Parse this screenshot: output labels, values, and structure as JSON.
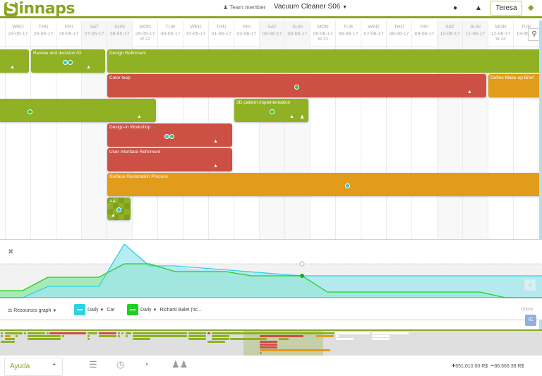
{
  "header": {
    "logo": "innaps",
    "logo_s": "S",
    "team_member": "Team member",
    "project": "Vacuum Cleaner S06",
    "user": "Teresa",
    "icons": [
      "chat-icon",
      "bell-icon",
      "graduation-cap-icon"
    ]
  },
  "calendar": {
    "columns": [
      {
        "day": "WED",
        "date": "24-05-17",
        "week": "",
        "weekend": false
      },
      {
        "day": "THU",
        "date": "25-05-17",
        "week": "",
        "weekend": false
      },
      {
        "day": "FRI",
        "date": "26-05-17",
        "week": "",
        "weekend": false
      },
      {
        "day": "SAT",
        "date": "27-05-17",
        "week": "",
        "weekend": true
      },
      {
        "day": "SUN",
        "date": "28-05-17",
        "week": "",
        "weekend": true
      },
      {
        "day": "MON",
        "date": "29-05-17",
        "week": "W 22",
        "weekend": false
      },
      {
        "day": "TUE",
        "date": "30-05-17",
        "week": "",
        "weekend": false
      },
      {
        "day": "WED",
        "date": "31-05-17",
        "week": "",
        "weekend": false
      },
      {
        "day": "THU",
        "date": "01-06-17",
        "week": "",
        "weekend": false
      },
      {
        "day": "FRI",
        "date": "02-06-17",
        "week": "",
        "weekend": false
      },
      {
        "day": "SAT",
        "date": "03-06-17",
        "week": "",
        "weekend": true
      },
      {
        "day": "SUN",
        "date": "04-06-17",
        "week": "",
        "weekend": true
      },
      {
        "day": "MON",
        "date": "05-06-17",
        "week": "W 23",
        "weekend": false
      },
      {
        "day": "TUE",
        "date": "06-06-17",
        "week": "",
        "weekend": false
      },
      {
        "day": "WED",
        "date": "07-06-17",
        "week": "",
        "weekend": false
      },
      {
        "day": "THU",
        "date": "08-06-17",
        "week": "",
        "weekend": false
      },
      {
        "day": "FRI",
        "date": "09-06-17",
        "week": "",
        "weekend": false
      },
      {
        "day": "SAT",
        "date": "10-06-17",
        "week": "",
        "weekend": true
      },
      {
        "day": "SUN",
        "date": "11-06-17",
        "week": "",
        "weekend": true
      },
      {
        "day": "MON",
        "date": "12-06-17",
        "week": "W 24",
        "weekend": false
      },
      {
        "day": "TUE",
        "date": "13-06-17",
        "week": "",
        "weekend": false
      }
    ]
  },
  "tasks": [
    {
      "label": "",
      "color": "green"
    },
    {
      "label": "Review and decision 02",
      "color": "green"
    },
    {
      "label": "Design Refinment",
      "color": "green"
    },
    {
      "label": "Color loop",
      "color": "red"
    },
    {
      "label": "Define Make-up Brief",
      "color": "orange"
    },
    {
      "label": "",
      "color": "green"
    },
    {
      "label": "3D pattern implementation",
      "color": "green"
    },
    {
      "label": "Design-in Workshop",
      "color": "red"
    },
    {
      "label": "User Interface Refinment",
      "color": "red"
    },
    {
      "label": "Surface Restoration Process",
      "color": "orange"
    },
    {
      "label": "AA",
      "color": "green"
    }
  ],
  "resources": {
    "graph_label": "Resources graph",
    "series": [
      {
        "period": "Daily",
        "name": "Car",
        "color": "#2bd3e3"
      },
      {
        "period": "Daily",
        "name": "Richard Balet (ric...",
        "color": "#1fd11f"
      }
    ],
    "online_label": "Online",
    "badge": "IC"
  },
  "footer": {
    "help": "Ayuda",
    "income": "651,010.00 R$",
    "expense": "88,666.38 R$"
  }
}
